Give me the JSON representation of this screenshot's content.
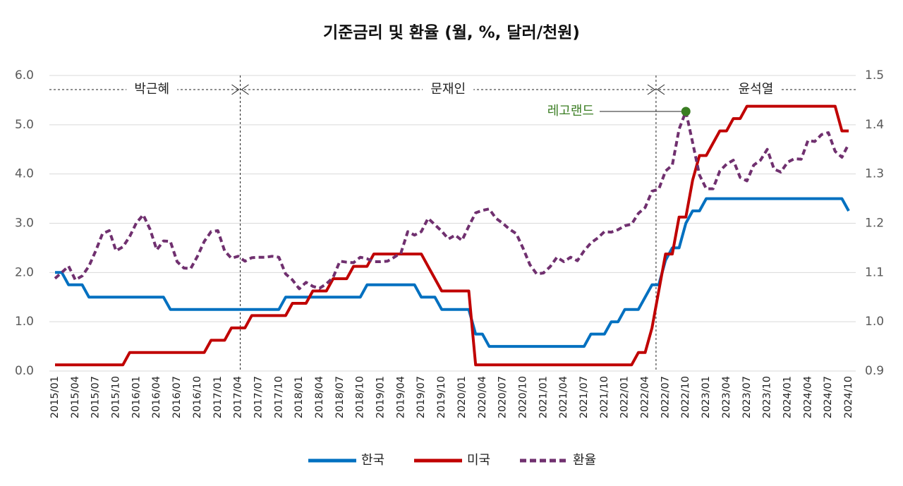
{
  "chart_data": {
    "type": "line",
    "title": "기준금리 및 환율 (월, %, 달러/천원)",
    "categories": [
      "2015/01",
      null,
      null,
      "2015/04",
      null,
      null,
      "2015/07",
      null,
      null,
      "2015/10",
      null,
      null,
      "2016/01",
      null,
      null,
      "2016/04",
      null,
      null,
      "2016/07",
      null,
      null,
      "2016/10",
      null,
      null,
      "2017/01",
      null,
      null,
      "2017/04",
      null,
      null,
      "2017/07",
      null,
      null,
      "2017/10",
      null,
      null,
      "2018/01",
      null,
      null,
      "2018/04",
      null,
      null,
      "2018/07",
      null,
      null,
      "2018/10",
      null,
      null,
      "2019/01",
      null,
      null,
      "2019/04",
      null,
      null,
      "2019/07",
      null,
      null,
      "2019/10",
      null,
      null,
      "2020/01",
      null,
      null,
      "2020/04",
      null,
      null,
      "2020/07",
      null,
      null,
      "2020/10",
      null,
      null,
      "2021/01",
      null,
      null,
      "2021/04",
      null,
      null,
      "2021/07",
      null,
      null,
      "2021/10",
      null,
      null,
      "2022/01",
      null,
      null,
      "2022/04",
      null,
      null,
      "2022/07",
      null,
      null,
      "2022/10",
      null,
      null,
      "2023/01",
      null,
      null,
      "2023/04",
      null,
      null,
      "2023/07",
      null,
      null,
      "2023/10",
      null,
      null,
      "2024/01",
      null,
      null,
      "2024/04",
      null,
      null,
      "2024/07",
      null,
      null,
      "2024/10"
    ],
    "series": [
      {
        "name": "한국",
        "color": "#0070c0",
        "dashed": false,
        "values": [
          2.0,
          2.0,
          1.75,
          1.75,
          1.75,
          1.5,
          1.5,
          1.5,
          1.5,
          1.5,
          1.5,
          1.5,
          1.5,
          1.5,
          1.5,
          1.5,
          1.5,
          1.25,
          1.25,
          1.25,
          1.25,
          1.25,
          1.25,
          1.25,
          1.25,
          1.25,
          1.25,
          1.25,
          1.25,
          1.25,
          1.25,
          1.25,
          1.25,
          1.25,
          1.5,
          1.5,
          1.5,
          1.5,
          1.5,
          1.5,
          1.5,
          1.5,
          1.5,
          1.5,
          1.5,
          1.5,
          1.75,
          1.75,
          1.75,
          1.75,
          1.75,
          1.75,
          1.75,
          1.75,
          1.5,
          1.5,
          1.5,
          1.25,
          1.25,
          1.25,
          1.25,
          1.25,
          0.75,
          0.75,
          0.5,
          0.5,
          0.5,
          0.5,
          0.5,
          0.5,
          0.5,
          0.5,
          0.5,
          0.5,
          0.5,
          0.5,
          0.5,
          0.5,
          0.5,
          0.75,
          0.75,
          0.75,
          1.0,
          1.0,
          1.25,
          1.25,
          1.25,
          1.5,
          1.75,
          1.75,
          2.25,
          2.5,
          2.5,
          3.0,
          3.25,
          3.25,
          3.5,
          3.5,
          3.5,
          3.5,
          3.5,
          3.5,
          3.5,
          3.5,
          3.5,
          3.5,
          3.5,
          3.5,
          3.5,
          3.5,
          3.5,
          3.5,
          3.5,
          3.5,
          3.5,
          3.5,
          3.5,
          3.25
        ]
      },
      {
        "name": "미국",
        "color": "#c00000",
        "dashed": false,
        "values": [
          0.125,
          0.125,
          0.125,
          0.125,
          0.125,
          0.125,
          0.125,
          0.125,
          0.125,
          0.125,
          0.125,
          0.375,
          0.375,
          0.375,
          0.375,
          0.375,
          0.375,
          0.375,
          0.375,
          0.375,
          0.375,
          0.375,
          0.375,
          0.625,
          0.625,
          0.625,
          0.875,
          0.875,
          0.875,
          1.125,
          1.125,
          1.125,
          1.125,
          1.125,
          1.125,
          1.375,
          1.375,
          1.375,
          1.625,
          1.625,
          1.625,
          1.875,
          1.875,
          1.875,
          2.125,
          2.125,
          2.125,
          2.375,
          2.375,
          2.375,
          2.375,
          2.375,
          2.375,
          2.375,
          2.375,
          2.125,
          1.875,
          1.625,
          1.625,
          1.625,
          1.625,
          1.625,
          0.125,
          0.125,
          0.125,
          0.125,
          0.125,
          0.125,
          0.125,
          0.125,
          0.125,
          0.125,
          0.125,
          0.125,
          0.125,
          0.125,
          0.125,
          0.125,
          0.125,
          0.125,
          0.125,
          0.125,
          0.125,
          0.125,
          0.125,
          0.125,
          0.375,
          0.375,
          0.875,
          1.625,
          2.375,
          2.375,
          3.125,
          3.125,
          3.875,
          4.375,
          4.375,
          4.625,
          4.875,
          4.875,
          5.125,
          5.125,
          5.375,
          5.375,
          5.375,
          5.375,
          5.375,
          5.375,
          5.375,
          5.375,
          5.375,
          5.375,
          5.375,
          5.375,
          5.375,
          5.375,
          4.875,
          4.875
        ]
      },
      {
        "name": "환율",
        "color": "#70306f",
        "dashed": true,
        "axis": "y2",
        "values": [
          1.088,
          1.1,
          1.113,
          1.085,
          1.093,
          1.113,
          1.144,
          1.179,
          1.185,
          1.144,
          1.152,
          1.173,
          1.201,
          1.217,
          1.188,
          1.146,
          1.164,
          1.163,
          1.122,
          1.109,
          1.108,
          1.133,
          1.163,
          1.183,
          1.185,
          1.144,
          1.129,
          1.133,
          1.123,
          1.13,
          1.131,
          1.131,
          1.133,
          1.131,
          1.097,
          1.085,
          1.067,
          1.08,
          1.072,
          1.068,
          1.077,
          1.09,
          1.123,
          1.121,
          1.12,
          1.131,
          1.128,
          1.122,
          1.122,
          1.123,
          1.131,
          1.14,
          1.183,
          1.176,
          1.183,
          1.21,
          1.197,
          1.184,
          1.168,
          1.176,
          1.165,
          1.194,
          1.221,
          1.226,
          1.229,
          1.21,
          1.2,
          1.188,
          1.179,
          1.149,
          1.116,
          1.097,
          1.099,
          1.112,
          1.131,
          1.122,
          1.131,
          1.124,
          1.144,
          1.16,
          1.17,
          1.183,
          1.182,
          1.187,
          1.195,
          1.198,
          1.22,
          1.232,
          1.265,
          1.269,
          1.306,
          1.318,
          1.391,
          1.427,
          1.364,
          1.298,
          1.27,
          1.27,
          1.306,
          1.32,
          1.328,
          1.293,
          1.286,
          1.318,
          1.328,
          1.35,
          1.31,
          1.304,
          1.324,
          1.331,
          1.33,
          1.368,
          1.366,
          1.38,
          1.384,
          1.346,
          1.334,
          1.361
        ]
      }
    ],
    "ylim": [
      0,
      6
    ],
    "yticks": [
      {
        "value": 0,
        "label": "0.0"
      },
      {
        "value": 1,
        "label": "1.0"
      },
      {
        "value": 2,
        "label": "2.0"
      },
      {
        "value": 3,
        "label": "3.0"
      },
      {
        "value": 4,
        "label": "4.0"
      },
      {
        "value": 5,
        "label": "5.0"
      },
      {
        "value": 6,
        "label": "6.0"
      }
    ],
    "y2lim": [
      0.9,
      1.5
    ],
    "y2ticks": [
      0.9,
      {
        "value": 1,
        "label": "1.0"
      },
      1.1,
      1.2,
      1.3,
      1.4,
      1.5
    ],
    "grid": true,
    "legend": "bottom",
    "annotations": {
      "periods": [
        "박근혜",
        "문재인",
        "윤석열"
      ],
      "event": "레고랜드",
      "event_color": "#3a7d22"
    }
  }
}
